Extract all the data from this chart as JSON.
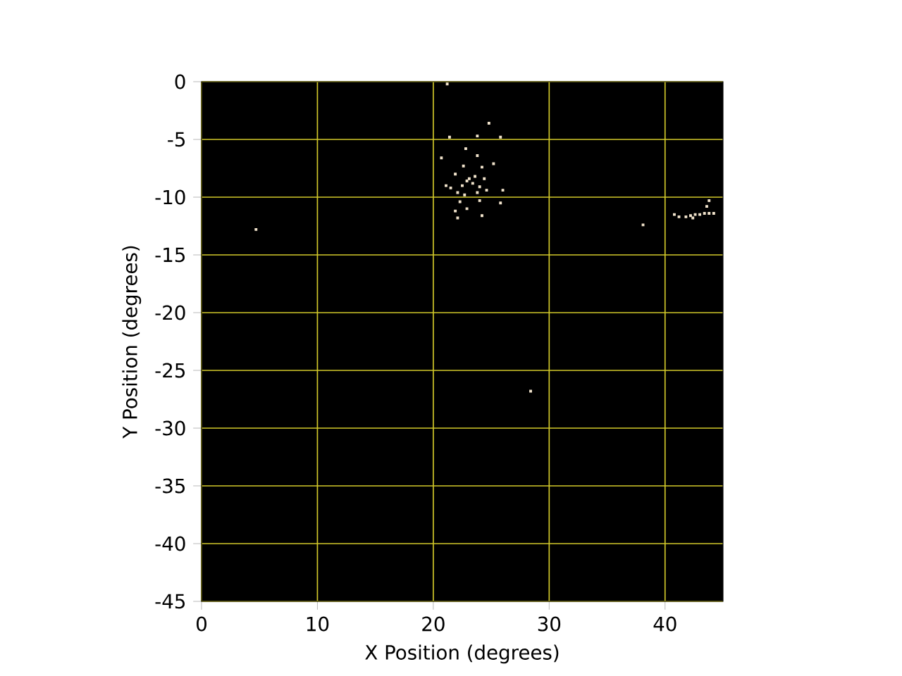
{
  "chart_data": {
    "type": "scatter",
    "xlabel": "X Position (degrees)",
    "ylabel": "Y Position (degrees)",
    "xlim": [
      0,
      45
    ],
    "ylim": [
      -45,
      0
    ],
    "xticks": [
      0,
      10,
      20,
      30,
      40
    ],
    "yticks": [
      0,
      -5,
      -10,
      -15,
      -20,
      -25,
      -30,
      -35,
      -40,
      -45
    ],
    "grid": true,
    "marker": "square",
    "series": [
      {
        "color": "#f2e4cc",
        "x": [
          21.2,
          24.8,
          21.4,
          23.8,
          25.8,
          22.8,
          23.8,
          20.7,
          22.6,
          24.2,
          25.2,
          21.9,
          23.1,
          22.9,
          23.4,
          23.6,
          22.5,
          24.0,
          24.4,
          21.5,
          21.1,
          22.1,
          23.8,
          24.6,
          22.7,
          22.3,
          24.0,
          25.8,
          21.9,
          22.9,
          22.1,
          24.2,
          26.0,
          38.1,
          40.8,
          41.2,
          41.8,
          42.2,
          42.6,
          43.0,
          43.4,
          43.8,
          44.2,
          43.6,
          43.8,
          42.4,
          4.7,
          28.4
        ],
        "values": [
          -0.2,
          -3.6,
          -4.8,
          -4.7,
          -4.8,
          -5.8,
          -6.4,
          -6.6,
          -7.3,
          -7.4,
          -7.1,
          -8.0,
          -8.4,
          -8.6,
          -8.8,
          -8.2,
          -9.0,
          -9.1,
          -8.4,
          -9.2,
          -9.0,
          -9.6,
          -9.6,
          -9.4,
          -9.8,
          -10.4,
          -10.3,
          -10.5,
          -11.2,
          -11.0,
          -11.8,
          -11.6,
          -9.4,
          -12.4,
          -11.5,
          -11.7,
          -11.7,
          -11.6,
          -11.5,
          -11.5,
          -11.4,
          -11.4,
          -11.4,
          -10.8,
          -10.3,
          -11.8,
          -12.8,
          -26.8
        ]
      }
    ]
  }
}
